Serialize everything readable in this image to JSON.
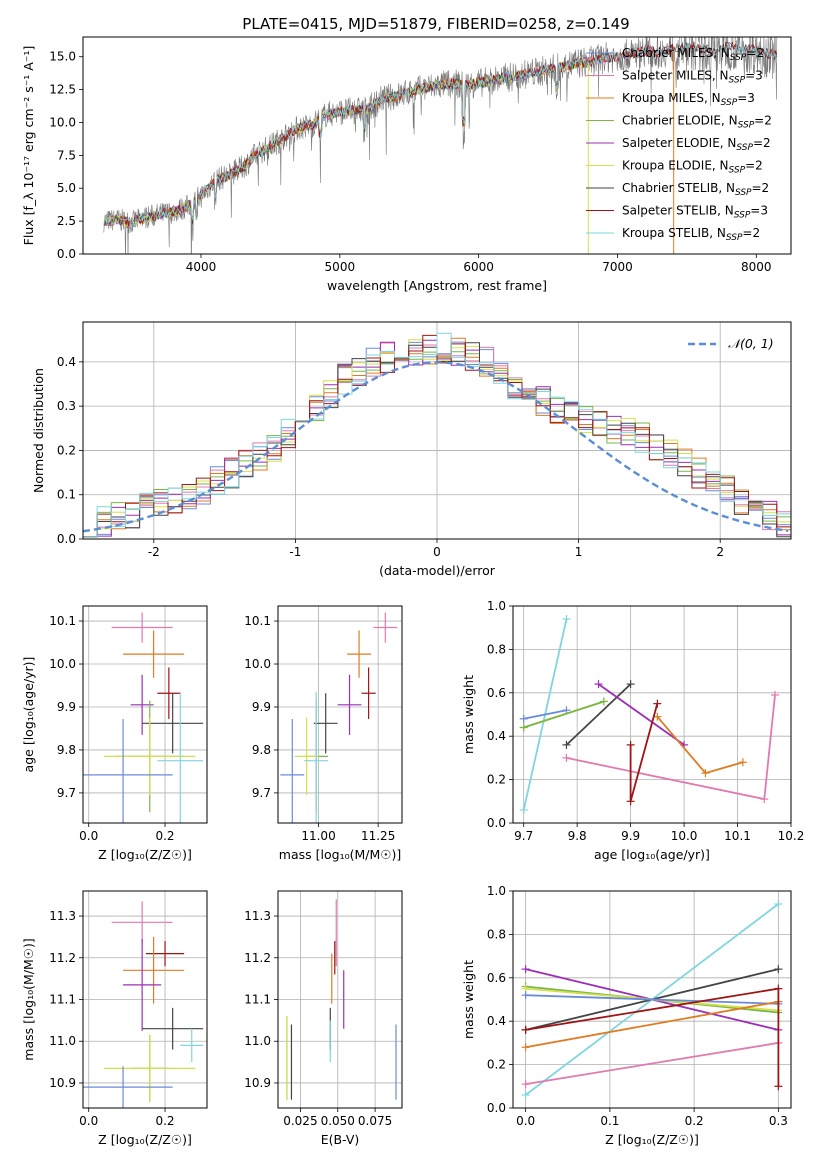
{
  "title": "PLATE=0415, MJD=51879, FIBERID=0258, z=0.149",
  "colors": {
    "chabrier_miles": "#6a8bd9",
    "salpeter_miles": "#e07ab0",
    "kroupa_miles": "#e07b22",
    "chabrier_elodie": "#7ab648",
    "salpeter_elodie": "#9b2fb5",
    "kroupa_elodie": "#d6e04a",
    "chabrier_stelib": "#444444",
    "salpeter_stelib": "#a01414",
    "kroupa_stelib": "#7fd6e0",
    "spectrum": "#777777",
    "gaussian": "#5b8ed6",
    "grid": "#b0b0b0"
  },
  "chart_data": [
    {
      "id": "spectrum",
      "type": "line",
      "xlabel": "wavelength [Angstrom, rest frame]",
      "ylabel": "Flux [f_λ 10⁻¹⁷ erg cm⁻² s⁻¹ A⁻¹]",
      "xlim": [
        3150,
        8250
      ],
      "ylim": [
        0,
        16.5
      ],
      "xticks": [
        4000,
        5000,
        6000,
        7000,
        8000
      ],
      "yticks": [
        0.0,
        2.5,
        5.0,
        7.5,
        10.0,
        12.5,
        15.0
      ],
      "ytick_labels": [
        "0.0",
        "2.5",
        "5.0",
        "7.5",
        "10.0",
        "12.5",
        "15.0"
      ],
      "grid": false,
      "legend_position": "top-right",
      "continuum": [
        [
          3300,
          2.5
        ],
        [
          3400,
          2.6
        ],
        [
          3500,
          2.4
        ],
        [
          3600,
          2.8
        ],
        [
          3700,
          3.0
        ],
        [
          3800,
          3.2
        ],
        [
          3900,
          3.6
        ],
        [
          4000,
          4.4
        ],
        [
          4050,
          5.0
        ],
        [
          4100,
          5.6
        ],
        [
          4200,
          6.0
        ],
        [
          4300,
          6.6
        ],
        [
          4400,
          7.6
        ],
        [
          4500,
          8.2
        ],
        [
          4600,
          8.9
        ],
        [
          4700,
          9.6
        ],
        [
          4800,
          9.8
        ],
        [
          4900,
          10.6
        ],
        [
          5000,
          10.8
        ],
        [
          5100,
          10.9
        ],
        [
          5200,
          11.0
        ],
        [
          5300,
          11.8
        ],
        [
          5400,
          12.0
        ],
        [
          5500,
          12.3
        ],
        [
          5600,
          12.6
        ],
        [
          5700,
          12.8
        ],
        [
          5800,
          13.0
        ],
        [
          5900,
          12.8
        ],
        [
          6000,
          13.0
        ],
        [
          6100,
          13.2
        ],
        [
          6200,
          13.4
        ],
        [
          6300,
          13.6
        ],
        [
          6400,
          13.8
        ],
        [
          6500,
          14.0
        ],
        [
          6600,
          14.2
        ],
        [
          6700,
          14.5
        ],
        [
          6800,
          14.6
        ],
        [
          6900,
          14.9
        ],
        [
          7000,
          15.0
        ],
        [
          7100,
          15.2
        ],
        [
          7200,
          15.5
        ],
        [
          7300,
          15.3
        ],
        [
          7400,
          15.6
        ],
        [
          7500,
          15.7
        ],
        [
          7600,
          15.6
        ],
        [
          7700,
          15.4
        ],
        [
          7800,
          15.8
        ],
        [
          7900,
          15.6
        ],
        [
          8000,
          15.5
        ],
        [
          8100,
          15.2
        ],
        [
          8150,
          15.1
        ]
      ],
      "legend": [
        {
          "label_main": "Chabrier MILES, N",
          "label_sub": "SSP",
          "label_end": "=2",
          "color_key": "chabrier_miles"
        },
        {
          "label_main": "Salpeter MILES, N",
          "label_sub": "SSP",
          "label_end": "=3",
          "color_key": "salpeter_miles"
        },
        {
          "label_main": "Kroupa MILES, N",
          "label_sub": "SSP",
          "label_end": "=3",
          "color_key": "kroupa_miles"
        },
        {
          "label_main": "Chabrier ELODIE, N",
          "label_sub": "SSP",
          "label_end": "=2",
          "color_key": "chabrier_elodie"
        },
        {
          "label_main": "Salpeter ELODIE, N",
          "label_sub": "SSP",
          "label_end": "=2",
          "color_key": "salpeter_elodie"
        },
        {
          "label_main": "Kroupa ELODIE, N",
          "label_sub": "SSP",
          "label_end": "=2",
          "color_key": "kroupa_elodie"
        },
        {
          "label_main": "Chabrier STELIB, N",
          "label_sub": "SSP",
          "label_end": "=2",
          "color_key": "chabrier_stelib"
        },
        {
          "label_main": "Salpeter STELIB, N",
          "label_sub": "SSP",
          "label_end": "=3",
          "color_key": "salpeter_stelib"
        },
        {
          "label_main": "Kroupa STELIB, N",
          "label_sub": "SSP",
          "label_end": "=2",
          "color_key": "kroupa_stelib"
        }
      ]
    },
    {
      "id": "residuals",
      "type": "step",
      "xlabel": "(data-model)/error",
      "ylabel": "Normed distribution",
      "xlim": [
        -2.5,
        2.5
      ],
      "ylim": [
        0,
        0.49
      ],
      "xticks": [
        -2,
        -1,
        0,
        1,
        2
      ],
      "yticks": [
        0.0,
        0.1,
        0.2,
        0.3,
        0.4
      ],
      "ytick_labels": [
        "0.0",
        "0.1",
        "0.2",
        "0.3",
        "0.4"
      ],
      "grid": true,
      "legend_position": "top-right",
      "gaussian_label": "𝒩(0, 1)",
      "bin_edges_start": -2.5,
      "bin_width": 0.1,
      "base_values": [
        0.03,
        0.04,
        0.05,
        0.06,
        0.07,
        0.08,
        0.09,
        0.1,
        0.11,
        0.13,
        0.15,
        0.17,
        0.19,
        0.21,
        0.24,
        0.27,
        0.3,
        0.33,
        0.36,
        0.38,
        0.4,
        0.41,
        0.42,
        0.42,
        0.43,
        0.43,
        0.42,
        0.41,
        0.4,
        0.38,
        0.35,
        0.33,
        0.31,
        0.29,
        0.28,
        0.27,
        0.26,
        0.25,
        0.24,
        0.23,
        0.21,
        0.19,
        0.17,
        0.15,
        0.13,
        0.11,
        0.09,
        0.07,
        0.05,
        0.03
      ]
    },
    {
      "id": "age-vs-z",
      "type": "errorbar",
      "xlabel": "Z [log₁₀(Z/Z☉)]",
      "ylabel": "age  [log₁₀(age/yr)]",
      "xlim": [
        -0.015,
        0.31
      ],
      "ylim": [
        9.63,
        10.135
      ],
      "xticks": [
        0.0,
        0.2
      ],
      "xtick_labels": [
        "0.0",
        "0.2"
      ],
      "yticks": [
        9.7,
        9.8,
        9.9,
        10.0,
        10.1
      ],
      "ytick_labels": [
        "9.7",
        "9.8",
        "9.9",
        "10.0",
        "10.1"
      ],
      "grid": true,
      "points": [
        {
          "color_key": "salpeter_miles",
          "x": 0.14,
          "xerr": 0.08,
          "y": 10.085,
          "yerr": 0.035
        },
        {
          "color_key": "kroupa_miles",
          "x": 0.17,
          "xerr": 0.08,
          "y": 10.023,
          "yerr": 0.055
        },
        {
          "color_key": "salpeter_stelib",
          "x": 0.21,
          "xerr": 0.03,
          "y": 9.932,
          "yerr": 0.06
        },
        {
          "color_key": "salpeter_elodie",
          "x": 0.14,
          "xerr": 0.03,
          "y": 9.905,
          "yerr": 0.07
        },
        {
          "color_key": "chabrier_stelib",
          "x": 0.22,
          "xerr": 0.08,
          "y": 9.862,
          "yerr": 0.07
        },
        {
          "color_key": "chabrier_elodie",
          "x": 0.16,
          "xerr": 0.09,
          "y": 9.785,
          "yerr": 0.13
        },
        {
          "color_key": "kroupa_elodie",
          "x": 0.16,
          "xerr": 0.12,
          "y": 9.785,
          "yerr": 0.09
        },
        {
          "color_key": "kroupa_stelib",
          "x": 0.24,
          "xerr": 0.06,
          "y": 9.775,
          "yerr": 0.16
        },
        {
          "color_key": "chabrier_miles",
          "x": 0.09,
          "xerr": 0.13,
          "y": 9.742,
          "yerr": 0.13
        }
      ]
    },
    {
      "id": "age-vs-mass",
      "type": "errorbar",
      "xlabel": "mass [log₁₀(M/M☉)]",
      "ylabel": "",
      "xlim": [
        10.83,
        11.35
      ],
      "ylim": [
        9.63,
        10.135
      ],
      "xticks": [
        11.0,
        11.25
      ],
      "xtick_labels": [
        "11.00",
        "11.25"
      ],
      "yticks": [
        9.7,
        9.8,
        9.9,
        10.0,
        10.1
      ],
      "ytick_labels": [
        "9.7",
        "9.8",
        "9.9",
        "10.0",
        "10.1"
      ],
      "grid": true,
      "points": [
        {
          "color_key": "salpeter_miles",
          "x": 11.28,
          "xerr": 0.05,
          "y": 10.085,
          "yerr": 0.035
        },
        {
          "color_key": "kroupa_miles",
          "x": 11.17,
          "xerr": 0.05,
          "y": 10.023,
          "yerr": 0.055
        },
        {
          "color_key": "salpeter_stelib",
          "x": 11.21,
          "xerr": 0.03,
          "y": 9.932,
          "yerr": 0.06
        },
        {
          "color_key": "salpeter_elodie",
          "x": 11.13,
          "xerr": 0.05,
          "y": 9.905,
          "yerr": 0.07
        },
        {
          "color_key": "chabrier_stelib",
          "x": 11.03,
          "xerr": 0.05,
          "y": 9.862,
          "yerr": 0.07
        },
        {
          "color_key": "chabrier_elodie",
          "x": 10.99,
          "xerr": 0.05,
          "y": 9.785,
          "yerr": 0.13
        },
        {
          "color_key": "kroupa_elodie",
          "x": 10.95,
          "xerr": 0.05,
          "y": 9.785,
          "yerr": 0.09
        },
        {
          "color_key": "kroupa_stelib",
          "x": 10.99,
          "xerr": 0.05,
          "y": 9.775,
          "yerr": 0.16
        },
        {
          "color_key": "chabrier_miles",
          "x": 10.89,
          "xerr": 0.05,
          "y": 9.742,
          "yerr": 0.13
        }
      ]
    },
    {
      "id": "weight-vs-age",
      "type": "line",
      "xlabel": "age  [log₁₀(age/yr)]",
      "ylabel": "mass weight",
      "xlim": [
        9.68,
        10.2
      ],
      "ylim": [
        0,
        1.0
      ],
      "xticks": [
        9.7,
        9.8,
        9.9,
        10.0,
        10.1,
        10.2
      ],
      "xtick_labels": [
        "9.7",
        "9.8",
        "9.9",
        "10.0",
        "10.1",
        "10.2"
      ],
      "yticks": [
        0.0,
        0.2,
        0.4,
        0.6,
        0.8,
        1.0
      ],
      "ytick_labels": [
        "0.0",
        "0.2",
        "0.4",
        "0.6",
        "0.8",
        "1.0"
      ],
      "grid": true,
      "series": [
        {
          "color_key": "kroupa_stelib",
          "x": [
            9.7,
            9.78
          ],
          "y": [
            0.06,
            0.94
          ]
        },
        {
          "color_key": "chabrier_miles",
          "x": [
            9.7,
            9.78
          ],
          "y": [
            0.48,
            0.52
          ]
        },
        {
          "color_key": "kroupa_elodie",
          "x": [
            9.7,
            9.85
          ],
          "y": [
            0.44,
            0.56
          ]
        },
        {
          "color_key": "chabrier_elodie",
          "x": [
            9.7,
            9.85
          ],
          "y": [
            0.44,
            0.56
          ]
        },
        {
          "color_key": "chabrier_stelib",
          "x": [
            9.78,
            9.9
          ],
          "y": [
            0.36,
            0.64
          ]
        },
        {
          "color_key": "salpeter_elodie",
          "x": [
            9.84,
            10.0
          ],
          "y": [
            0.64,
            0.36
          ]
        },
        {
          "color_key": "salpeter_miles",
          "x": [
            9.78,
            10.15,
            10.17
          ],
          "y": [
            0.3,
            0.11,
            0.59
          ]
        },
        {
          "color_key": "kroupa_miles",
          "x": [
            9.95,
            10.04,
            10.11
          ],
          "y": [
            0.49,
            0.23,
            0.28
          ]
        },
        {
          "color_key": "salpeter_stelib",
          "x": [
            9.9,
            9.9,
            9.95
          ],
          "y": [
            0.36,
            0.1,
            0.55
          ]
        }
      ]
    },
    {
      "id": "mass-vs-z",
      "type": "errorbar",
      "xlabel": "Z [log₁₀(Z/Z☉)]",
      "ylabel": "mass [log₁₀(M/M☉)]",
      "xlim": [
        -0.015,
        0.31
      ],
      "ylim": [
        10.84,
        11.36
      ],
      "xticks": [
        0.0,
        0.2
      ],
      "xtick_labels": [
        "0.0",
        "0.2"
      ],
      "yticks": [
        10.9,
        11.0,
        11.1,
        11.2,
        11.3
      ],
      "ytick_labels": [
        "10.9",
        "11.0",
        "11.1",
        "11.2",
        "11.3"
      ],
      "grid": true,
      "points": [
        {
          "color_key": "salpeter_miles",
          "x": 0.14,
          "xerr": 0.08,
          "y": 11.285,
          "yerr": 0.05
        },
        {
          "color_key": "salpeter_stelib",
          "x": 0.2,
          "xerr": 0.05,
          "y": 11.21,
          "yerr": 0.03
        },
        {
          "color_key": "kroupa_miles",
          "x": 0.17,
          "xerr": 0.08,
          "y": 11.17,
          "yerr": 0.08
        },
        {
          "color_key": "salpeter_elodie",
          "x": 0.14,
          "xerr": 0.05,
          "y": 11.135,
          "yerr": 0.11
        },
        {
          "color_key": "chabrier_stelib",
          "x": 0.22,
          "xerr": 0.08,
          "y": 11.03,
          "yerr": 0.05
        },
        {
          "color_key": "kroupa_stelib",
          "x": 0.27,
          "xerr": 0.03,
          "y": 10.99,
          "yerr": 0.04
        },
        {
          "color_key": "chabrier_elodie",
          "x": 0.16,
          "xerr": 0.05,
          "y": 10.935,
          "yerr": 0.08
        },
        {
          "color_key": "kroupa_elodie",
          "x": 0.16,
          "xerr": 0.12,
          "y": 10.935,
          "yerr": 0.08
        },
        {
          "color_key": "chabrier_miles",
          "x": 0.09,
          "xerr": 0.13,
          "y": 10.89,
          "yerr": 0.05
        }
      ]
    },
    {
      "id": "mass-vs-ebv",
      "type": "errorbar",
      "xlabel": "E(B-V)",
      "ylabel": "",
      "xlim": [
        0.01,
        0.093
      ],
      "ylim": [
        10.84,
        11.36
      ],
      "xticks": [
        0.025,
        0.05,
        0.075
      ],
      "xtick_labels": [
        "0.025",
        "0.050",
        "0.075"
      ],
      "yticks": [
        10.9,
        11.0,
        11.1,
        11.2,
        11.3
      ],
      "ytick_labels": [
        "10.9",
        "11.0",
        "11.1",
        "11.2",
        "11.3"
      ],
      "grid": true,
      "points": [
        {
          "color_key": "salpeter_miles",
          "x": 0.049,
          "xerr": 0,
          "y": 11.26,
          "yerr": 0.08
        },
        {
          "color_key": "salpeter_stelib",
          "x": 0.048,
          "xerr": 0,
          "y": 11.2,
          "yerr": 0.04
        },
        {
          "color_key": "kroupa_miles",
          "x": 0.046,
          "xerr": 0,
          "y": 11.15,
          "yerr": 0.06
        },
        {
          "color_key": "salpeter_elodie",
          "x": 0.054,
          "xerr": 0,
          "y": 11.1,
          "yerr": 0.07
        },
        {
          "color_key": "chabrier_stelib",
          "x": 0.045,
          "xerr": 0,
          "y": 11.03,
          "yerr": 0.05
        },
        {
          "color_key": "kroupa_stelib",
          "x": 0.045,
          "xerr": 0,
          "y": 11.0,
          "yerr": 0.05
        },
        {
          "color_key": "chabrier_elodie",
          "x": 0.016,
          "xerr": 0,
          "y": 10.96,
          "yerr": 0.1
        },
        {
          "color_key": "kroupa_elodie",
          "x": 0.016,
          "xerr": 0,
          "y": 10.96,
          "yerr": 0.1
        },
        {
          "color_key": "chabrier_stelib",
          "x": 0.019,
          "xerr": 0,
          "y": 10.95,
          "yerr": 0.09
        },
        {
          "color_key": "chabrier_miles",
          "x": 0.089,
          "xerr": 0,
          "y": 10.95,
          "yerr": 0.09
        }
      ]
    },
    {
      "id": "weight-vs-z",
      "type": "line",
      "xlabel": "Z [log₁₀(Z/Z☉)]",
      "ylabel": "mass weight",
      "xlim": [
        -0.015,
        0.315
      ],
      "ylim": [
        0,
        1.0
      ],
      "xticks": [
        0.0,
        0.1,
        0.2,
        0.3
      ],
      "xtick_labels": [
        "0.0",
        "0.1",
        "0.2",
        "0.3"
      ],
      "yticks": [
        0.0,
        0.2,
        0.4,
        0.6,
        0.8,
        1.0
      ],
      "ytick_labels": [
        "0.0",
        "0.2",
        "0.4",
        "0.6",
        "0.8",
        "1.0"
      ],
      "grid": true,
      "series": [
        {
          "color_key": "kroupa_stelib",
          "x": [
            0.0,
            0.3
          ],
          "y": [
            0.06,
            0.94
          ]
        },
        {
          "color_key": "chabrier_stelib",
          "x": [
            0.0,
            0.3
          ],
          "y": [
            0.36,
            0.64
          ]
        },
        {
          "color_key": "salpeter_elodie",
          "x": [
            0.0,
            0.3
          ],
          "y": [
            0.64,
            0.36
          ]
        },
        {
          "color_key": "chabrier_elodie",
          "x": [
            0.0,
            0.3
          ],
          "y": [
            0.56,
            0.44
          ]
        },
        {
          "color_key": "kroupa_elodie",
          "x": [
            0.0,
            0.3
          ],
          "y": [
            0.55,
            0.45
          ]
        },
        {
          "color_key": "chabrier_miles",
          "x": [
            0.0,
            0.3
          ],
          "y": [
            0.52,
            0.48
          ]
        },
        {
          "color_key": "kroupa_miles",
          "x": [
            0.0,
            0.3
          ],
          "y": [
            0.28,
            0.49
          ]
        },
        {
          "color_key": "salpeter_miles",
          "x": [
            0.0,
            0.3
          ],
          "y": [
            0.11,
            0.3
          ]
        },
        {
          "color_key": "salpeter_stelib",
          "x": [
            0.0,
            0.3,
            0.3
          ],
          "y": [
            0.36,
            0.55,
            0.1
          ]
        }
      ]
    }
  ]
}
